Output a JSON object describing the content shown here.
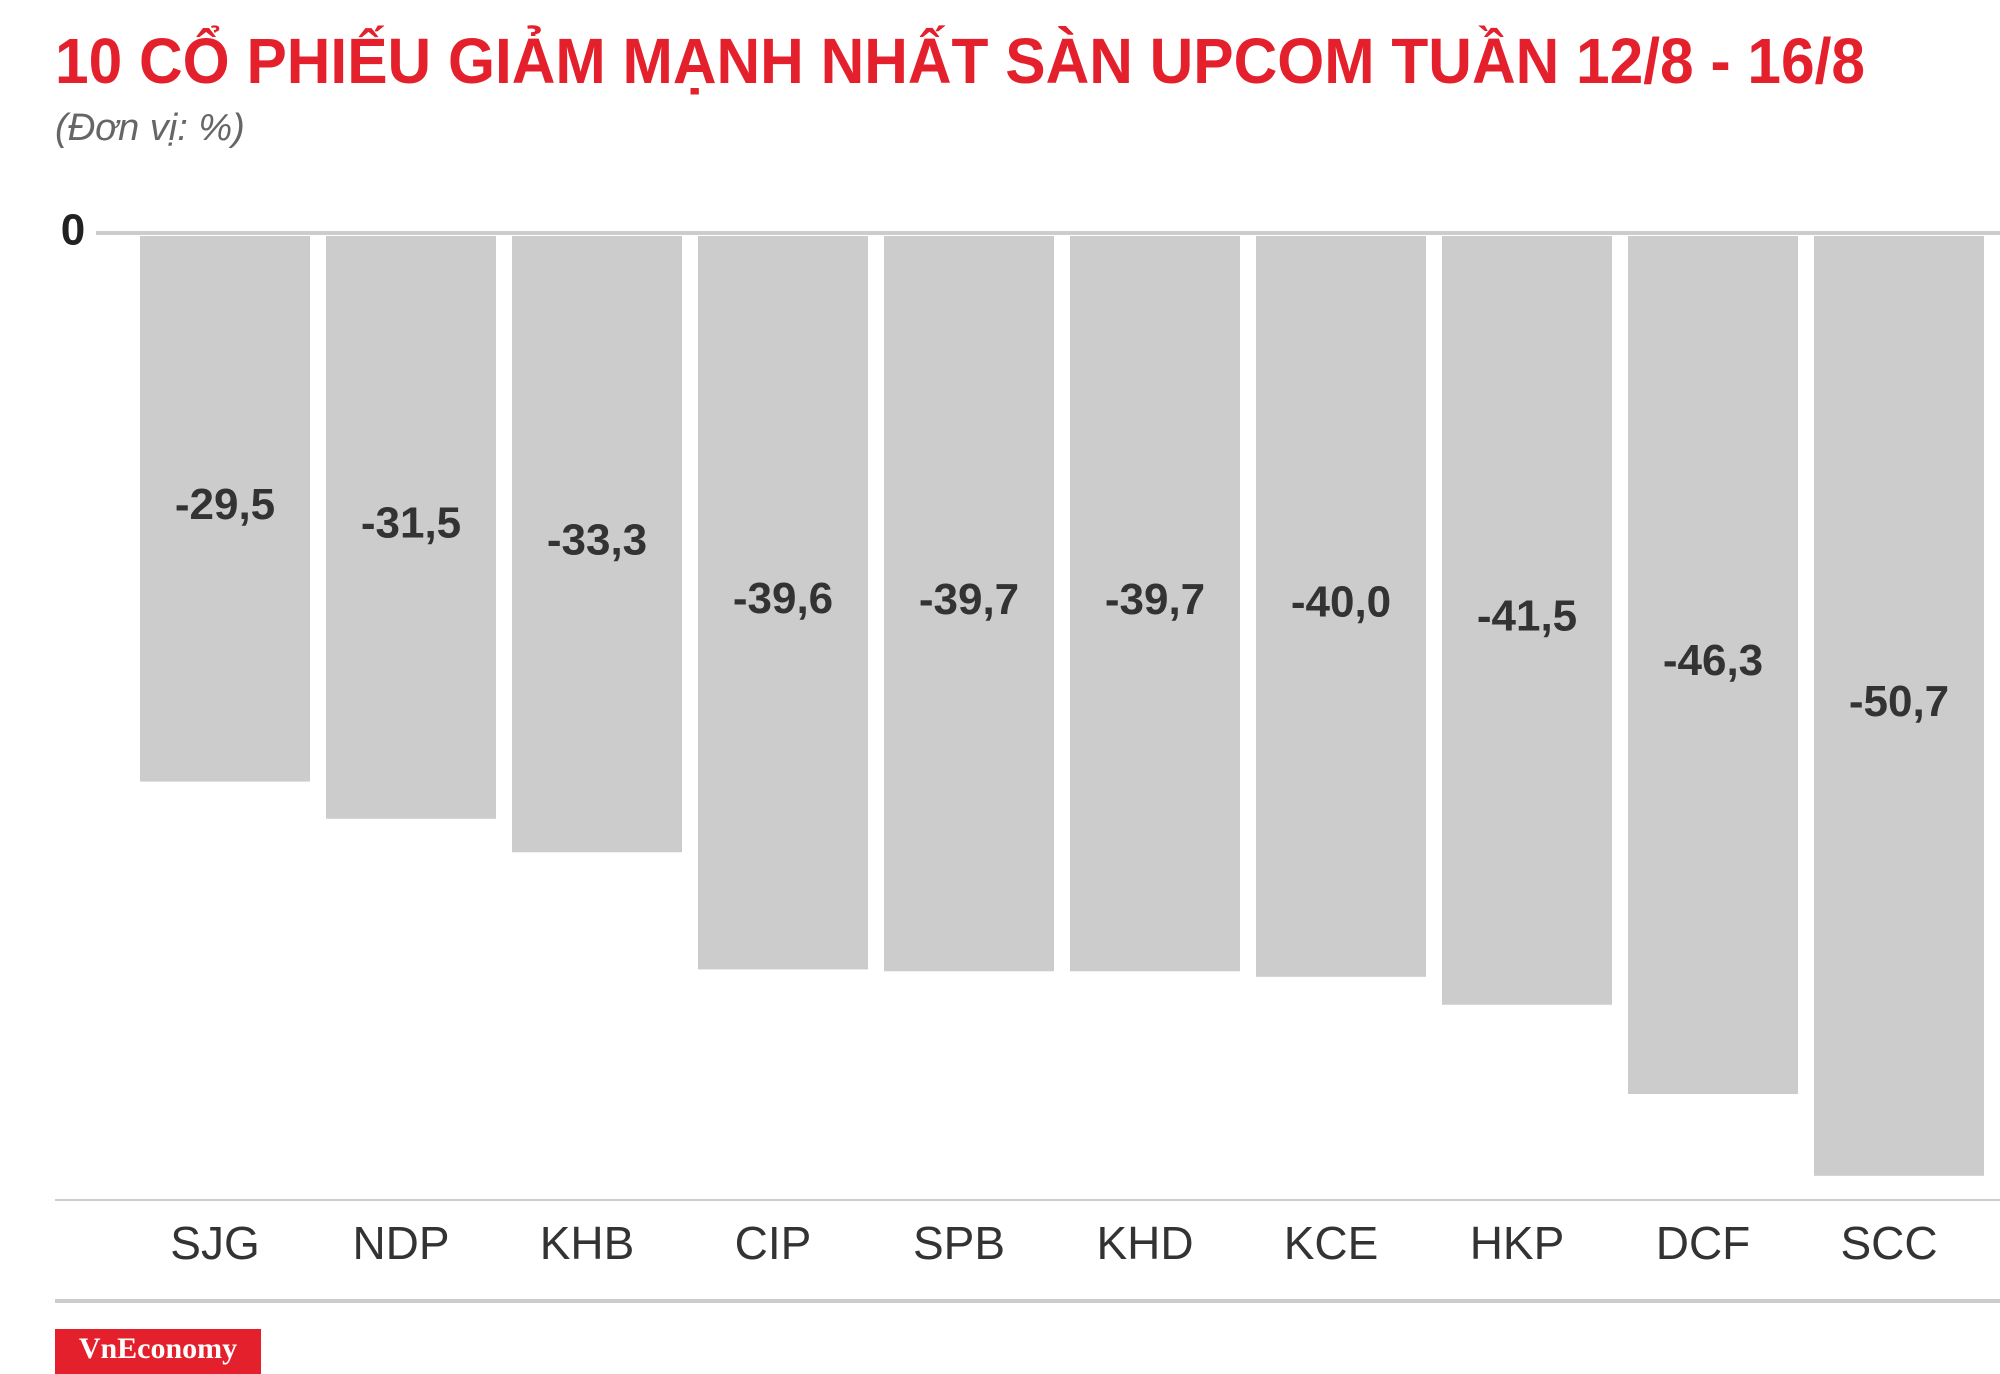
{
  "chart_data": {
    "type": "bar",
    "title": "10 CỔ PHIẾU GIẢM MẠNH NHẤT SÀN UPCOM TUẦN 12/8 - 16/8",
    "subtitle": "(Đơn vị: %)",
    "categories": [
      "SJG",
      "NDP",
      "KHB",
      "CIP",
      "SPB",
      "KHD",
      "KCE",
      "HKP",
      "DCF",
      "SCC"
    ],
    "values": [
      -29.5,
      -31.5,
      -33.3,
      -39.6,
      -39.7,
      -39.7,
      -40.0,
      -41.5,
      -46.3,
      -50.7
    ],
    "value_labels": [
      "-29,5",
      "-31,5",
      "-33,3",
      "-39,6",
      "-39,7",
      "-39,7",
      "-40,0",
      "-41,5",
      "-46,3",
      "-50,7"
    ],
    "color": "#cdcccd",
    "ylim": [
      -52,
      0
    ],
    "yticks": [
      0
    ],
    "source": "VnEconomy"
  }
}
